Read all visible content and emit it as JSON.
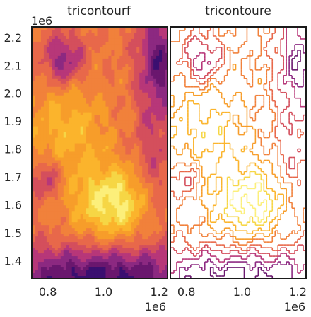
{
  "chart_data": [
    {
      "type": "heatmap",
      "title": "tricontourf",
      "x_offset_label": "1e6",
      "y_offset_label": "1e6",
      "xlim": [
        0.745,
        1.23
      ],
      "ylim": [
        1.335,
        2.235
      ],
      "x_ticks": [
        {
          "value": 0.8,
          "label": "0.8"
        },
        {
          "value": 1.0,
          "label": "1.0"
        },
        {
          "value": 1.2,
          "label": "1.2"
        }
      ],
      "y_ticks": [
        {
          "value": 1.4,
          "label": "1.4"
        },
        {
          "value": 1.5,
          "label": "1.5"
        },
        {
          "value": 1.6,
          "label": "1.6"
        },
        {
          "value": 1.7,
          "label": "1.7"
        },
        {
          "value": 1.8,
          "label": "1.8"
        },
        {
          "value": 1.9,
          "label": "1.9"
        },
        {
          "value": 2.0,
          "label": "2.0"
        },
        {
          "value": 2.1,
          "label": "2.1"
        },
        {
          "value": 2.2,
          "label": "2.2"
        }
      ],
      "colormap": "inferno",
      "filled": true
    },
    {
      "type": "heatmap",
      "title": "tricontoure",
      "x_offset_label": "1e6",
      "xlim": [
        0.745,
        1.23
      ],
      "ylim": [
        1.335,
        2.235
      ],
      "x_ticks": [
        {
          "value": 0.8,
          "label": "0.8"
        },
        {
          "value": 1.0,
          "label": "1.0"
        },
        {
          "value": 1.2,
          "label": "1.2"
        }
      ],
      "colormap": "inferno",
      "filled": false
    }
  ],
  "colors": {
    "level_colors": [
      "#3b0f70",
      "#6a176e",
      "#8c2981",
      "#b73779",
      "#d44f5c",
      "#e8684a",
      "#f1813b",
      "#f79d2a",
      "#fbb42c",
      "#f6d645",
      "#fcef7a"
    ]
  }
}
